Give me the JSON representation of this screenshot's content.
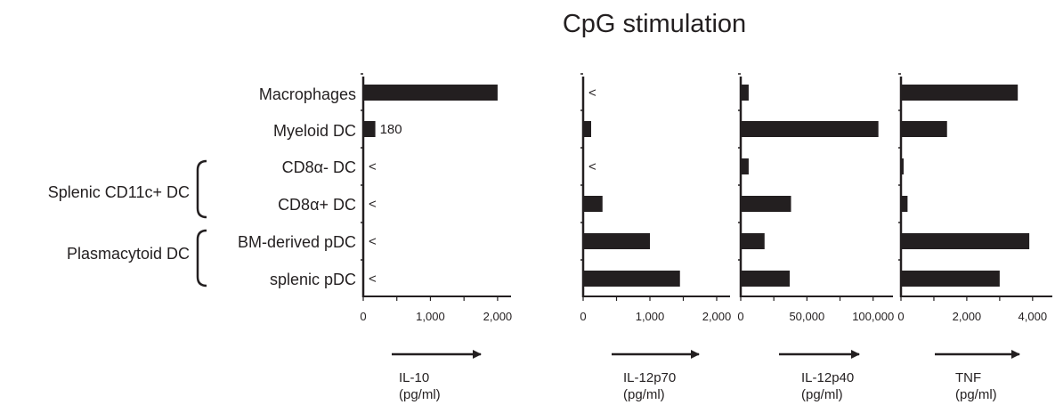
{
  "title": "CpG stimulation",
  "colors": {
    "ink": "#231f20",
    "bar": "#231f20",
    "background": "#ffffff"
  },
  "chart_data": {
    "type": "bar",
    "orientation": "horizontal",
    "categories": [
      "Macrophages",
      "Myeloid DC",
      "CD8α- DC",
      "CD8α+ DC",
      "BM-derived pDC",
      "splenic pDC"
    ],
    "groups": [
      {
        "label": "Splenic CD11c+ DC",
        "members": [
          "CD8α- DC",
          "CD8α+ DC"
        ]
      },
      {
        "label": "Plasmacytoid DC",
        "members": [
          "BM-derived pDC",
          "splenic pDC"
        ]
      }
    ],
    "panels": [
      {
        "cytokine": "IL-10",
        "unit": "(pg/ml)",
        "xlim": [
          0,
          2200
        ],
        "ticks": [
          0,
          1000,
          2000
        ],
        "tick_labels": [
          "0",
          "1,000",
          "2,000"
        ],
        "values": [
          2000,
          180,
          null,
          null,
          null,
          null
        ],
        "value_labels": [
          "",
          "180",
          "<",
          "<",
          "<",
          "<"
        ]
      },
      {
        "cytokine": "IL-12p70",
        "unit": "(pg/ml)",
        "xlim": [
          0,
          2200
        ],
        "ticks": [
          0,
          1000,
          2000
        ],
        "tick_labels": [
          "0",
          "1,000",
          "2,000"
        ],
        "values": [
          null,
          120,
          null,
          290,
          1000,
          1450
        ],
        "value_labels": [
          "<",
          "",
          "<",
          "",
          "",
          ""
        ]
      },
      {
        "cytokine": "IL-12p40",
        "unit": "(pg/ml)",
        "xlim": [
          0,
          115000
        ],
        "ticks": [
          0,
          50000,
          100000
        ],
        "tick_labels": [
          "0",
          "50,000",
          "100,000"
        ],
        "values": [
          6000,
          104000,
          6000,
          38000,
          18000,
          37000
        ],
        "value_labels": [
          "",
          "",
          "",
          "",
          "",
          ""
        ]
      },
      {
        "cytokine": "TNF",
        "unit": "(pg/ml)",
        "xlim": [
          0,
          4600
        ],
        "ticks": [
          0,
          2000,
          4000
        ],
        "tick_labels": [
          "0",
          "2,000",
          "4,000"
        ],
        "values": [
          3550,
          1400,
          80,
          200,
          3900,
          3000
        ],
        "value_labels": [
          "",
          "",
          "",
          "",
          "",
          ""
        ]
      }
    ]
  }
}
